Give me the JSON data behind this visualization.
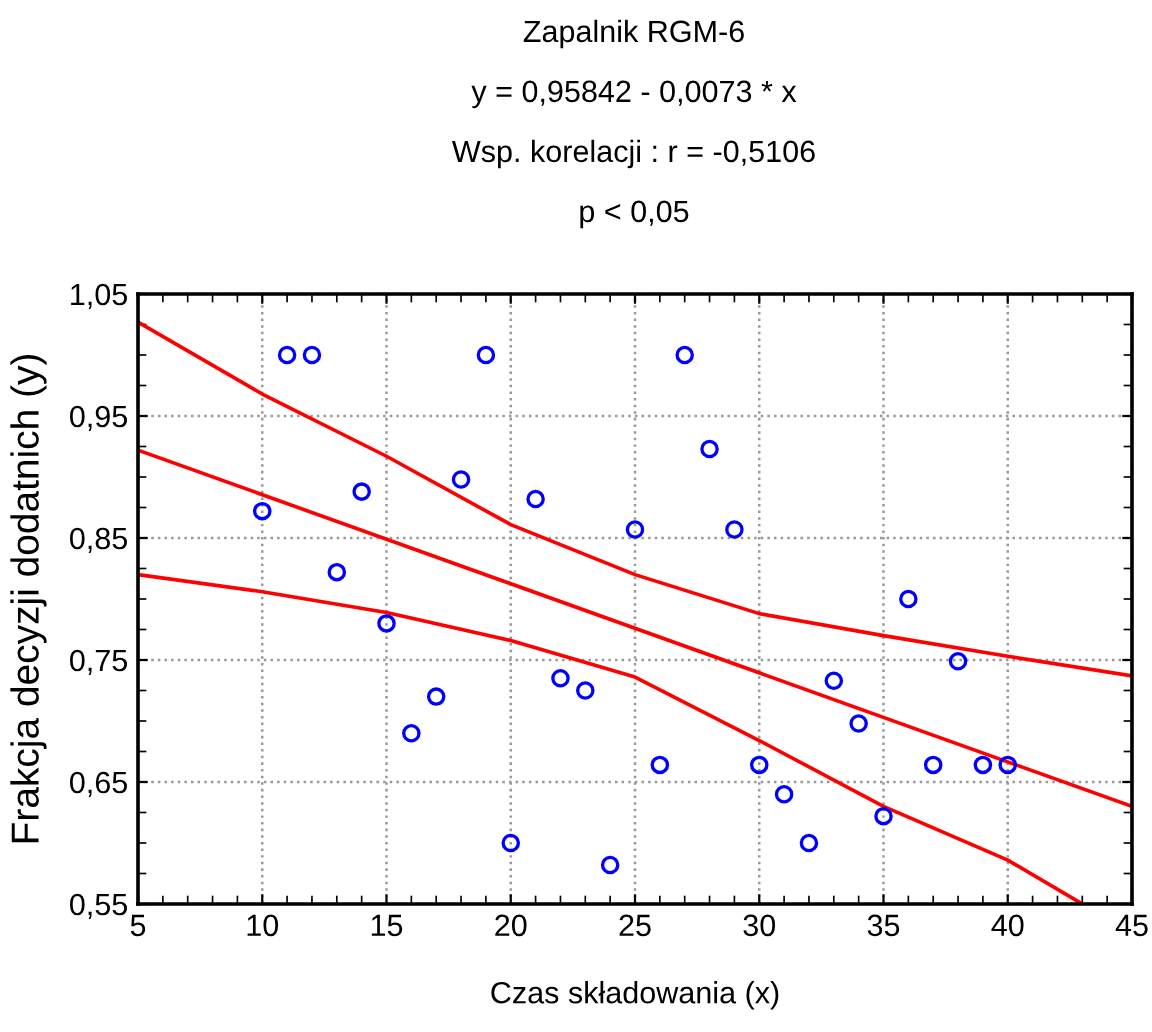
{
  "chart_data": {
    "type": "scatter",
    "title": "Zapalnik RGM-6",
    "annotations": [
      "y = 0,95842 - 0,0073 * x",
      "Wsp. korelacji : r = -0,5106",
      "p < 0,05"
    ],
    "xlabel": "Czas składowania (x)",
    "ylabel": "Frakcja decyzji dodatnich (y)",
    "x": [
      10,
      11,
      12,
      13,
      14,
      15,
      16,
      17,
      18,
      19,
      20,
      21,
      22,
      23,
      24,
      25,
      26,
      27,
      28,
      29,
      30,
      31,
      32,
      33,
      34,
      35,
      36,
      37,
      38,
      39,
      40
    ],
    "series": [
      {
        "color": "#0000ff",
        "marker": "circle",
        "values": [
          0.872,
          1.0,
          1.0,
          0.822,
          0.888,
          0.78,
          0.69,
          0.72,
          0.898,
          1.0,
          0.6,
          0.882,
          0.735,
          0.725,
          0.582,
          0.857,
          0.664,
          1.0,
          0.923,
          0.857,
          0.664,
          0.64,
          0.6,
          0.733,
          0.698,
          0.622,
          0.8,
          0.664,
          0.749,
          0.664,
          0.664
        ]
      },
      {
        "type": "line",
        "color": "#ff0000",
        "x": [
          5,
          45
        ],
        "values": [
          0.922,
          0.63
        ]
      },
      {
        "type": "line",
        "color": "#ff0000",
        "x": [
          5,
          10,
          15,
          20,
          25,
          30,
          35,
          40,
          45
        ],
        "values": [
          1.027,
          0.968,
          0.917,
          0.861,
          0.82,
          0.788,
          0.77,
          0.753,
          0.737
        ]
      },
      {
        "type": "line",
        "color": "#ff0000",
        "x": [
          5,
          10,
          15,
          20,
          25,
          30,
          35,
          40,
          43
        ],
        "values": [
          0.82,
          0.806,
          0.789,
          0.766,
          0.736,
          0.684,
          0.63,
          0.586,
          0.55
        ]
      }
    ],
    "xlim": [
      5,
      45
    ],
    "xticks": [
      5,
      10,
      15,
      20,
      25,
      30,
      35,
      40,
      45
    ],
    "ylim": [
      0.55,
      1.05
    ],
    "yticks": [
      {
        "value": 0.55,
        "label": "0,55"
      },
      {
        "value": 0.65,
        "label": "0,65"
      },
      {
        "value": 0.75,
        "label": "0,75"
      },
      {
        "value": 0.85,
        "label": "0,85"
      },
      {
        "value": 0.95,
        "label": "0,95"
      },
      {
        "value": 1.05,
        "label": "1,05"
      }
    ],
    "grid": true,
    "legend": false
  }
}
